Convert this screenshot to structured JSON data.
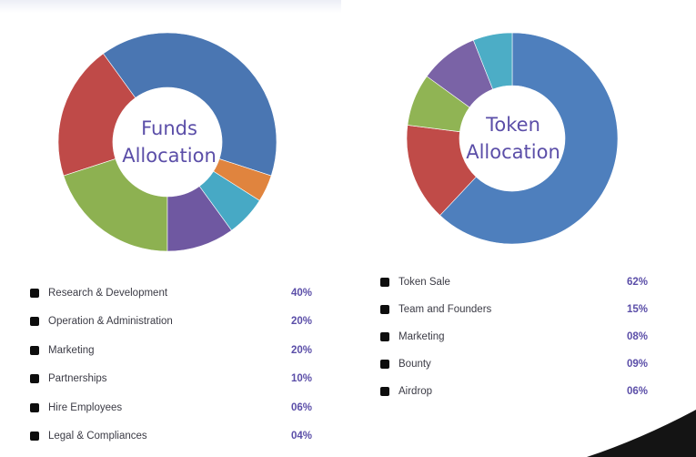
{
  "colors": {
    "blue": "#4a76b2",
    "red": "#bf4a48",
    "green": "#8db151",
    "purple": "#6f58a1",
    "teal": "#47a9c5",
    "orange": "#e0843e",
    "title": "#5b4ea8"
  },
  "chart_data": [
    {
      "type": "pie",
      "title": "Funds Allocation",
      "slices": [
        {
          "label": "Research & Development",
          "value": 40,
          "display": "40%",
          "color": "#4a76b2"
        },
        {
          "label": "Operation & Administration",
          "value": 20,
          "display": "20%",
          "color": "#bf4a48"
        },
        {
          "label": "Marketing",
          "value": 20,
          "display": "20%",
          "color": "#8db151"
        },
        {
          "label": "Partnerships",
          "value": 10,
          "display": "10%",
          "color": "#6f58a1"
        },
        {
          "label": "Hire Employees",
          "value": 6,
          "display": "06%",
          "color": "#47a9c5"
        },
        {
          "label": "Legal & Compliances",
          "value": 4,
          "display": "04%",
          "color": "#e0843e"
        }
      ]
    },
    {
      "type": "pie",
      "title": "Token Allocation",
      "slices": [
        {
          "label": "Token Sale",
          "value": 62,
          "display": "62%",
          "color": "#4e7fbd"
        },
        {
          "label": "Team and Founders",
          "value": 15,
          "display": "15%",
          "color": "#c04b48"
        },
        {
          "label": "Marketing",
          "value": 8,
          "display": "08%",
          "color": "#90b454"
        },
        {
          "label": "Bounty",
          "value": 9,
          "display": "09%",
          "color": "#7a63a6"
        },
        {
          "label": "Airdrop",
          "value": 6,
          "display": "06%",
          "color": "#4cadc6"
        }
      ]
    }
  ],
  "funds": {
    "title_line1": "Funds",
    "title_line2": "Allocation"
  },
  "token": {
    "title_line1": "Token",
    "title_line2": "Allocation"
  }
}
